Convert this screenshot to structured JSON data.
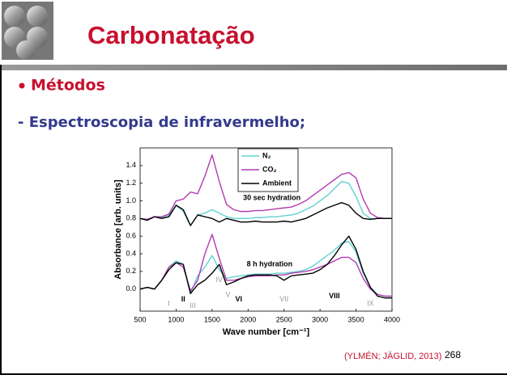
{
  "header": {
    "title": "Carbonatação"
  },
  "bullet": "Métodos",
  "subheading": "- Espectroscopia de infravermelho;",
  "citation": "(YLMÉN; JÄGLID, 2013)",
  "page_number": "268",
  "chart_data": {
    "type": "line",
    "xlabel": "Wave number [cm⁻¹]",
    "ylabel": "Absorbance [arb. units]",
    "x": [
      500,
      600,
      700,
      800,
      900,
      1000,
      1100,
      1200,
      1300,
      1400,
      1500,
      1600,
      1700,
      1800,
      1900,
      2000,
      2100,
      2200,
      2300,
      2400,
      2500,
      2600,
      2700,
      2800,
      2900,
      3000,
      3100,
      3200,
      3300,
      3400,
      3500,
      3600,
      3700,
      3800,
      3900,
      4000
    ],
    "series": [
      {
        "name": "N₂",
        "color": "#5fd3d0",
        "values": [
          0.8,
          0.79,
          0.82,
          0.81,
          0.84,
          0.95,
          0.88,
          0.72,
          0.84,
          0.86,
          0.9,
          0.86,
          0.82,
          0.8,
          0.8,
          0.8,
          0.81,
          0.81,
          0.82,
          0.82,
          0.83,
          0.84,
          0.86,
          0.9,
          0.94,
          1.0,
          1.06,
          1.14,
          1.22,
          1.2,
          1.05,
          0.86,
          0.8,
          0.8,
          0.8,
          0.8
        ],
        "values_8h": [
          0.0,
          0.02,
          0.0,
          0.1,
          0.25,
          0.32,
          0.28,
          -0.05,
          0.15,
          0.25,
          0.38,
          0.22,
          0.12,
          0.14,
          0.15,
          0.16,
          0.17,
          0.17,
          0.17,
          0.18,
          0.18,
          0.19,
          0.2,
          0.22,
          0.26,
          0.32,
          0.38,
          0.44,
          0.52,
          0.54,
          0.42,
          0.18,
          0.02,
          -0.06,
          -0.08,
          -0.08
        ]
      },
      {
        "name": "CO₂",
        "color": "#b23bb2",
        "values": [
          0.8,
          0.79,
          0.82,
          0.82,
          0.85,
          1.0,
          1.02,
          1.1,
          1.08,
          1.28,
          1.52,
          1.22,
          0.96,
          0.9,
          0.88,
          0.88,
          0.89,
          0.89,
          0.9,
          0.91,
          0.92,
          0.93,
          0.96,
          1.0,
          1.06,
          1.12,
          1.18,
          1.24,
          1.3,
          1.32,
          1.26,
          1.02,
          0.86,
          0.81,
          0.8,
          0.8
        ],
        "values_8h": [
          0.0,
          0.02,
          0.0,
          0.1,
          0.25,
          0.3,
          0.25,
          -0.02,
          0.1,
          0.4,
          0.62,
          0.35,
          0.1,
          0.1,
          0.12,
          0.14,
          0.15,
          0.15,
          0.15,
          0.16,
          0.16,
          0.18,
          0.19,
          0.2,
          0.22,
          0.25,
          0.28,
          0.32,
          0.36,
          0.36,
          0.3,
          0.12,
          0.0,
          -0.06,
          -0.08,
          -0.08
        ]
      },
      {
        "name": "Ambient",
        "color": "#000000",
        "values": [
          0.8,
          0.78,
          0.82,
          0.8,
          0.82,
          0.95,
          0.9,
          0.72,
          0.84,
          0.82,
          0.8,
          0.76,
          0.8,
          0.78,
          0.76,
          0.76,
          0.77,
          0.76,
          0.76,
          0.76,
          0.77,
          0.76,
          0.78,
          0.8,
          0.84,
          0.88,
          0.92,
          0.95,
          0.98,
          0.95,
          0.86,
          0.8,
          0.79,
          0.8,
          0.8,
          0.8
        ],
        "values_8h": [
          0.0,
          0.02,
          0.0,
          0.1,
          0.22,
          0.3,
          0.28,
          -0.05,
          0.05,
          0.1,
          0.18,
          0.28,
          0.05,
          0.08,
          0.12,
          0.15,
          0.16,
          0.16,
          0.16,
          0.15,
          0.1,
          0.15,
          0.16,
          0.17,
          0.18,
          0.22,
          0.28,
          0.38,
          0.5,
          0.6,
          0.45,
          0.2,
          0.02,
          -0.08,
          -0.1,
          -0.1
        ]
      }
    ],
    "xlim": [
      500,
      4000
    ],
    "xticks": [
      500,
      1000,
      1500,
      2000,
      2500,
      3000,
      3500,
      4000
    ],
    "ylim": [
      -0.25,
      1.6
    ],
    "yticks": [
      {
        "value": 0,
        "label": "0.0"
      },
      0.2,
      0.4,
      0.6,
      0.8,
      {
        "value": 1,
        "label": "1.0"
      },
      1.2,
      1.4
    ],
    "annotations": [
      {
        "text": "30 sec hydration",
        "x": 2330,
        "y": 1.03,
        "color": "#000000"
      },
      {
        "text": "8 h hydration",
        "x": 2300,
        "y": 0.28,
        "color": "#000000"
      },
      {
        "text": "I",
        "x": 900,
        "y": -0.17,
        "color": "#9a9a9a"
      },
      {
        "text": "II",
        "x": 1100,
        "y": -0.12,
        "color": "#000000"
      },
      {
        "text": "III",
        "x": 1230,
        "y": -0.19,
        "color": "#9a9a9a"
      },
      {
        "text": "IV",
        "x": 1600,
        "y": 0.1,
        "color": "#9a9a9a"
      },
      {
        "text": "V",
        "x": 1720,
        "y": -0.07,
        "color": "#9a9a9a"
      },
      {
        "text": "VI",
        "x": 1870,
        "y": -0.12,
        "color": "#000000"
      },
      {
        "text": "VII",
        "x": 2500,
        "y": -0.12,
        "color": "#9a9a9a"
      },
      {
        "text": "VIII",
        "x": 3200,
        "y": -0.08,
        "color": "#000000"
      },
      {
        "text": "IX",
        "x": 3700,
        "y": -0.17,
        "color": "#9a9a9a"
      }
    ]
  }
}
